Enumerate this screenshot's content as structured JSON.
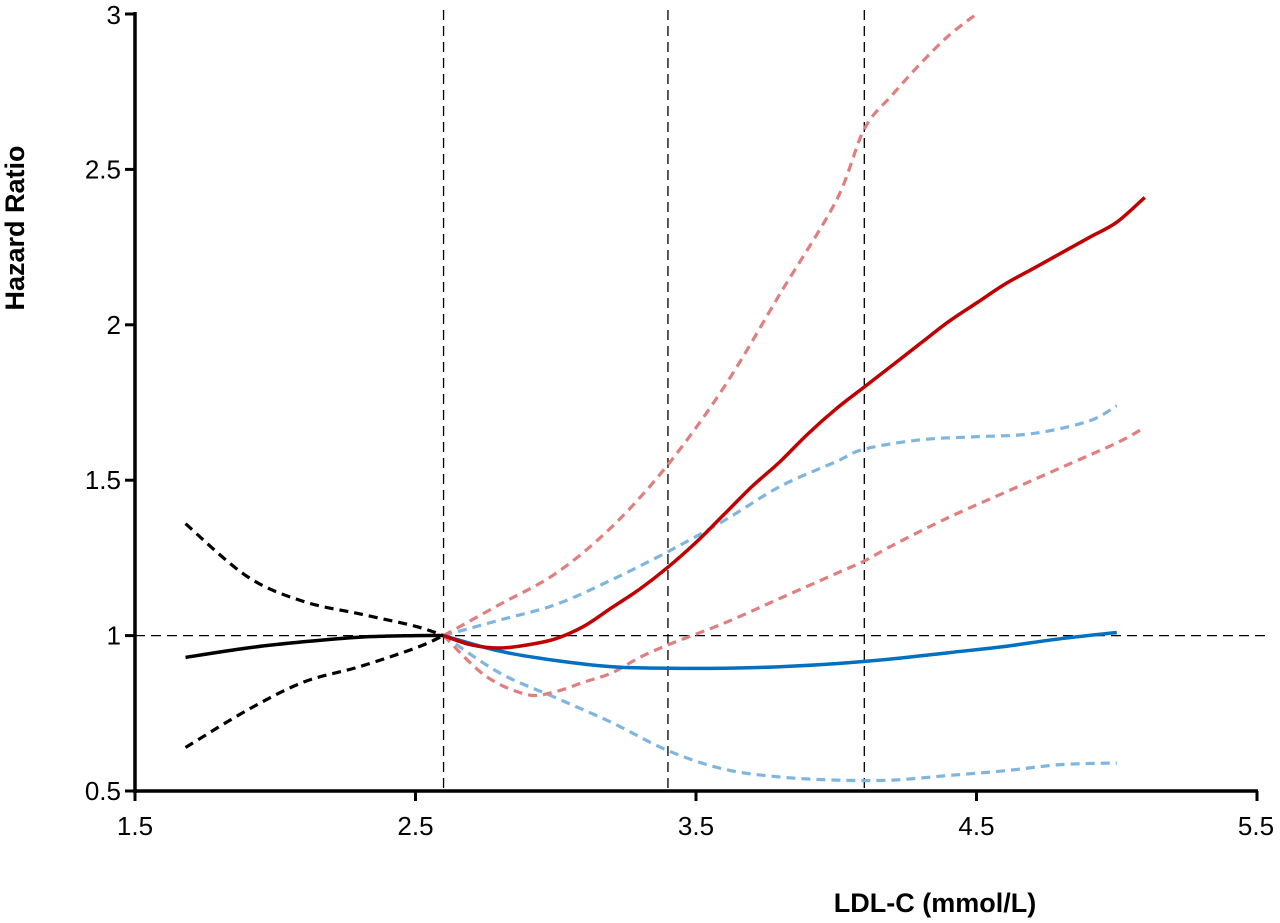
{
  "chart_data": {
    "type": "line",
    "title": "",
    "xlabel": "LDL-C (mmol/L)",
    "ylabel": "Hazard Ratio",
    "xlim": [
      1.5,
      5.5
    ],
    "ylim": [
      0.5,
      3
    ],
    "xticks": [
      1.5,
      2.5,
      3.5,
      4.5,
      5.5
    ],
    "xtick_labels": [
      "1.5",
      "2.5",
      "3.5",
      "4.5",
      "5.5"
    ],
    "yticks": [
      0.5,
      1,
      1.5,
      2,
      2.5,
      3
    ],
    "ytick_labels": [
      "0.5",
      "1",
      "1.5",
      "2",
      "2.5",
      "3"
    ],
    "grid": false,
    "legend": "none",
    "reference_lines": {
      "horizontal": [
        1
      ],
      "vertical": [
        2.6,
        3.4,
        4.1
      ]
    },
    "series": [
      {
        "style": "solid",
        "color": "#000000",
        "x": [
          1.68,
          1.9,
          2.1,
          2.3,
          2.5,
          2.6
        ],
        "y": [
          0.93,
          0.96,
          0.98,
          0.995,
          1.0,
          1.0
        ]
      },
      {
        "style": "dashed",
        "color": "#000000",
        "x": [
          1.68,
          1.9,
          2.1,
          2.3,
          2.5,
          2.6
        ],
        "y": [
          1.36,
          1.19,
          1.11,
          1.07,
          1.03,
          1.0
        ]
      },
      {
        "style": "dashed",
        "color": "#000000",
        "x": [
          1.68,
          1.9,
          2.1,
          2.3,
          2.5,
          2.6
        ],
        "y": [
          0.64,
          0.76,
          0.85,
          0.9,
          0.96,
          1.0
        ]
      },
      {
        "style": "solid",
        "color": "#c00000",
        "x": [
          2.6,
          2.7,
          2.8,
          2.9,
          3.0,
          3.1,
          3.2,
          3.3,
          3.4,
          3.5,
          3.6,
          3.7,
          3.8,
          3.9,
          4.0,
          4.1,
          4.2,
          4.3,
          4.4,
          4.5,
          4.6,
          4.7,
          4.8,
          4.9,
          5.0,
          5.1
        ],
        "y": [
          1.0,
          0.97,
          0.96,
          0.97,
          0.99,
          1.03,
          1.09,
          1.15,
          1.22,
          1.3,
          1.39,
          1.48,
          1.56,
          1.65,
          1.73,
          1.8,
          1.87,
          1.94,
          2.01,
          2.07,
          2.13,
          2.18,
          2.23,
          2.28,
          2.33,
          2.41
        ]
      },
      {
        "style": "dashed",
        "color": "#e07f7f",
        "x": [
          2.6,
          2.8,
          3.0,
          3.2,
          3.4,
          3.6,
          3.8,
          4.0,
          4.1,
          4.2,
          4.3,
          4.4,
          4.5
        ],
        "y": [
          1.0,
          1.1,
          1.2,
          1.35,
          1.55,
          1.8,
          2.1,
          2.4,
          2.63,
          2.74,
          2.84,
          2.93,
          3.0
        ]
      },
      {
        "style": "dashed",
        "color": "#e07f7f",
        "x": [
          2.6,
          2.75,
          2.9,
          3.0,
          3.1,
          3.2,
          3.3,
          3.4,
          3.6,
          3.8,
          4.0,
          4.1,
          4.2,
          4.4,
          4.6,
          4.8,
          5.0,
          5.1
        ],
        "y": [
          1.0,
          0.87,
          0.81,
          0.82,
          0.85,
          0.88,
          0.93,
          0.97,
          1.04,
          1.12,
          1.2,
          1.24,
          1.29,
          1.38,
          1.46,
          1.54,
          1.62,
          1.67
        ]
      },
      {
        "style": "solid",
        "color": "#0070c0",
        "x": [
          2.6,
          2.8,
          3.0,
          3.2,
          3.4,
          3.6,
          3.8,
          4.0,
          4.2,
          4.4,
          4.6,
          4.8,
          5.0
        ],
        "y": [
          1.0,
          0.95,
          0.92,
          0.9,
          0.895,
          0.895,
          0.9,
          0.91,
          0.925,
          0.945,
          0.965,
          0.99,
          1.01
        ]
      },
      {
        "style": "dashed",
        "color": "#7fb6e0",
        "x": [
          2.6,
          2.8,
          3.0,
          3.2,
          3.4,
          3.6,
          3.8,
          4.0,
          4.1,
          4.3,
          4.5,
          4.7,
          4.9,
          5.0
        ],
        "y": [
          1.0,
          1.05,
          1.1,
          1.18,
          1.27,
          1.37,
          1.48,
          1.56,
          1.6,
          1.63,
          1.64,
          1.65,
          1.69,
          1.74
        ]
      },
      {
        "style": "dashed",
        "color": "#7fb6e0",
        "x": [
          2.6,
          2.8,
          3.0,
          3.2,
          3.4,
          3.6,
          3.8,
          4.0,
          4.2,
          4.4,
          4.6,
          4.8,
          5.0
        ],
        "y": [
          1.0,
          0.88,
          0.8,
          0.72,
          0.63,
          0.57,
          0.545,
          0.535,
          0.535,
          0.55,
          0.565,
          0.585,
          0.59
        ]
      }
    ]
  }
}
